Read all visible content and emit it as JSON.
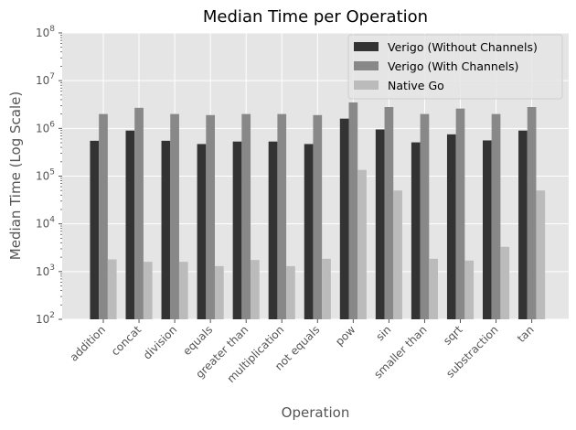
{
  "chart_data": {
    "type": "bar",
    "title": "Median Time per Operation",
    "xlabel": "Operation",
    "ylabel": "Median Time (Log Scale)",
    "y_scale": "log",
    "ylim": [
      100,
      100000000
    ],
    "y_ticks": [
      {
        "value": 100,
        "base": "10",
        "exp": "2"
      },
      {
        "value": 1000,
        "base": "10",
        "exp": "3"
      },
      {
        "value": 10000,
        "base": "10",
        "exp": "4"
      },
      {
        "value": 100000,
        "base": "10",
        "exp": "5"
      },
      {
        "value": 1000000,
        "base": "10",
        "exp": "6"
      },
      {
        "value": 10000000,
        "base": "10",
        "exp": "7"
      },
      {
        "value": 100000000,
        "base": "10",
        "exp": "8"
      }
    ],
    "grid": true,
    "legend_position": "top-right",
    "categories": [
      "addition",
      "concat",
      "division",
      "equals",
      "greater than",
      "multiplication",
      "not equals",
      "pow",
      "sin",
      "smaller than",
      "sqrt",
      "substraction",
      "tan"
    ],
    "series": [
      {
        "name": "Verigo (Without Channels)",
        "color": "#333333",
        "values": [
          550000,
          900000,
          550000,
          470000,
          530000,
          530000,
          470000,
          1600000,
          950000,
          510000,
          750000,
          560000,
          900000
        ]
      },
      {
        "name": "Verigo (With Channels)",
        "color": "#888888",
        "values": [
          2000000,
          2700000,
          2000000,
          1900000,
          2000000,
          2000000,
          1900000,
          3500000,
          2800000,
          2000000,
          2600000,
          2000000,
          2800000
        ]
      },
      {
        "name": "Native Go",
        "color": "#bbbbbb",
        "values": [
          1800,
          1600,
          1600,
          1300,
          1750,
          1300,
          1850,
          135000,
          50000,
          1850,
          1700,
          3300,
          50000
        ]
      }
    ]
  },
  "colors": {
    "plot_background": "#e5e5e5",
    "grid": "#ffffff",
    "legend_background": "#e5e5e5",
    "legend_border": "#d0d0d0"
  }
}
